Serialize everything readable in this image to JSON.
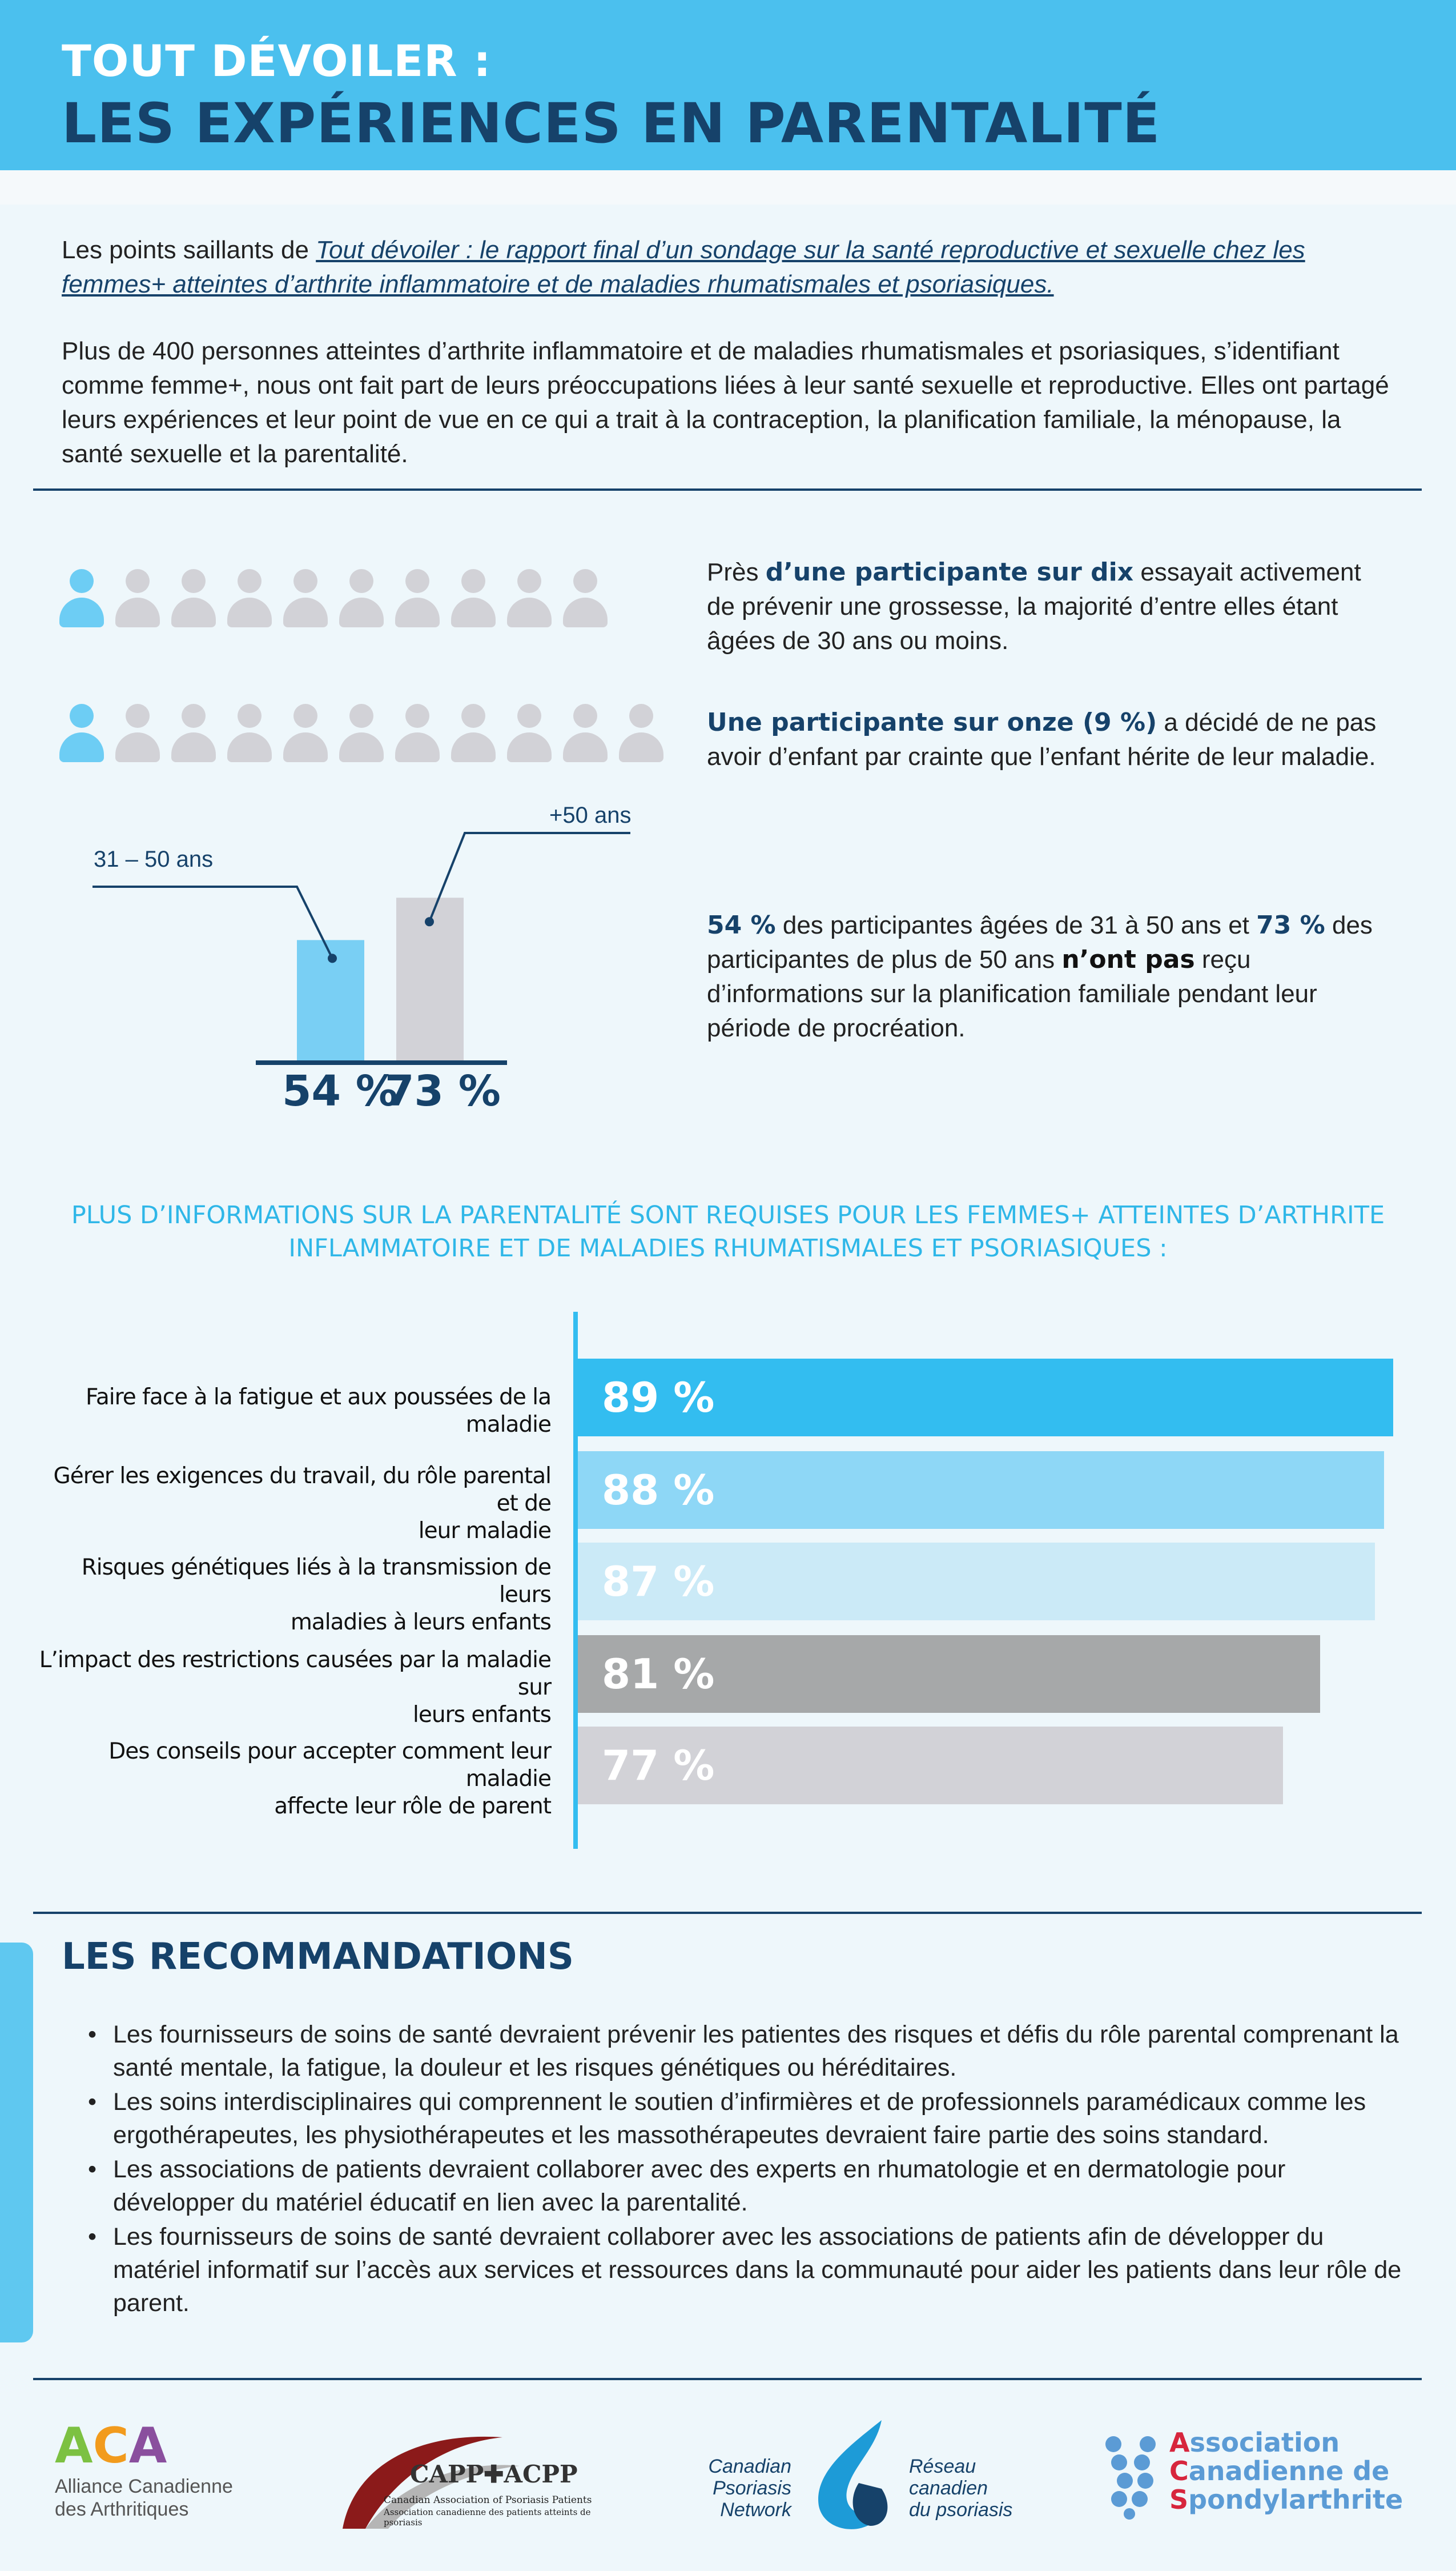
{
  "header": {
    "line1": "TOUT DÉVOILER :",
    "line2": "LES EXPÉRIENCES EN PARENTALITÉ"
  },
  "intro": {
    "p1_prefix": "Les points saillants de ",
    "p1_link": "Tout dévoiler : le rapport final d’un sondage sur la santé reproductive et sexuelle chez les femmes+ atteintes d’arthrite inflammatoire et de maladies rhumatismales et psoriasiques.",
    "p2": "Plus de 400 personnes atteintes d’arthrite inflammatoire et de maladies rhumatismales et psoriasiques, s’identifiant comme femme+, nous ont fait part de leurs préoccupations liées à leur santé sexuelle et reproductive. Elles ont partagé leurs expériences et leur point de vue en ce qui a trait à la contraception, la planification familiale, la ménopause, la santé sexuelle et la parentalité."
  },
  "stats": {
    "s1_bold": "Près d’une participante sur dix",
    "s1_pre": "Près ",
    "s1_em": "d’une participante sur dix",
    "s1_rest": " essayait activement de prévenir une grossesse, la majorité d’entre elles étant âgées de 30 ans ou moins.",
    "s2_em": "Une participante sur onze (9 %)",
    "s2_rest": " a décidé de ne pas avoir d’enfant par crainte que l’enfant hérite de leur maladie.",
    "s3_em1": "54 %",
    "s3_mid1": " des participantes âgées de 31 à 50 ans et ",
    "s3_em2": "73 %",
    "s3_mid2": " des participantes de plus de 50 ans ",
    "s3_em3": "n’ont pas",
    "s3_rest": " reçu d’informations sur la planification familiale pendant leur période de procréation."
  },
  "icon_rows": [
    {
      "highlighted": 1,
      "total": 10
    },
    {
      "highlighted": 1,
      "total": 11
    }
  ],
  "age_chart": {
    "label_a": "31 – 50 ans",
    "label_b": "+50 ans",
    "value_a": 54,
    "value_b": 73,
    "value_a_text": "54 %",
    "value_b_text": "73 %",
    "color_a": "#79cff4",
    "color_b": "#d2d2d7"
  },
  "info_section": {
    "title_l1": "PLUS D’INFORMATIONS SUR LA PARENTALITÉ SONT REQUISES POUR LES FEMMES+ ATTEINTES D’ARTHRITE",
    "title_l2": "INFLAMMATOIRE ET DE MALADIES RHUMATISMALES ET PSORIASIQUES :"
  },
  "chart_data": {
    "type": "bar",
    "orientation": "horizontal",
    "categories": [
      "Faire face à la fatigue et aux poussées de la maladie",
      "Gérer les exigences du travail, du rôle parental et de leur maladie",
      "Risques génétiques liés à la transmission de leurs maladies à leurs enfants",
      "L’impact des restrictions causées par la maladie sur leurs enfants",
      "Des conseils pour accepter comment leur maladie affecte leur rôle de parent"
    ],
    "category_lines": [
      [
        "Faire face à la fatigue et aux poussées de la maladie"
      ],
      [
        "Gérer les exigences du travail, du rôle parental et de",
        "leur maladie"
      ],
      [
        "Risques génétiques liés à la transmission de leurs",
        "maladies à leurs enfants"
      ],
      [
        "L’impact des restrictions causées par la maladie sur",
        "leurs enfants"
      ],
      [
        "Des conseils pour accepter comment leur maladie",
        "affecte leur rôle de parent"
      ]
    ],
    "values": [
      89,
      88,
      87,
      81,
      77
    ],
    "value_labels": [
      "89 %",
      "88 %",
      "87 %",
      "81 %",
      "77 %"
    ],
    "colors": [
      "#33bdf0",
      "#8ed7f6",
      "#cbeaf7",
      "#a6a8a9",
      "#d2d2d7"
    ],
    "xlim": [
      0,
      90
    ],
    "grid": false
  },
  "recommendations": {
    "title": "LES RECOMMANDATIONS",
    "items": [
      "Les fournisseurs de soins de santé devraient prévenir les patientes des risques et défis du rôle parental comprenant la santé mentale, la fatigue, la douleur et les risques génétiques ou héréditaires.",
      "Les soins interdisciplinaires qui comprennent le soutien d’infirmières et de professionnels paramédicaux comme les ergothérapeutes, les physiothérapeutes et les massothérapeutes devraient faire partie des soins standard.",
      "Les associations de patients devraient collaborer avec des experts en rhumatologie et en dermatologie pour développer du matériel éducatif en lien avec la parentalité.",
      "Les fournisseurs de soins de santé devraient collaborer avec les associations de patients afin de développer du matériel informatif sur l’accès aux services et ressources dans la communauté pour aider les patients dans leur rôle de parent."
    ]
  },
  "logos": {
    "aca_mark": "ACA",
    "aca_l1": "Alliance Canadienne",
    "aca_l2": "des Arthritiques",
    "capp_mark": "CAPP✚ACPP",
    "capp_l1": "Canadian Association of Psoriasis Patients",
    "capp_l2": "Association canadienne des patients atteints de psoriasis",
    "cpn_en": [
      "Canadian",
      "Psoriasis",
      "Network"
    ],
    "cpn_fr": [
      "Réseau",
      "canadien",
      "du psoriasis"
    ],
    "acs_l1": "Association",
    "acs_l2": "Canadienne de",
    "acs_l3": "Spondylarthrite"
  }
}
